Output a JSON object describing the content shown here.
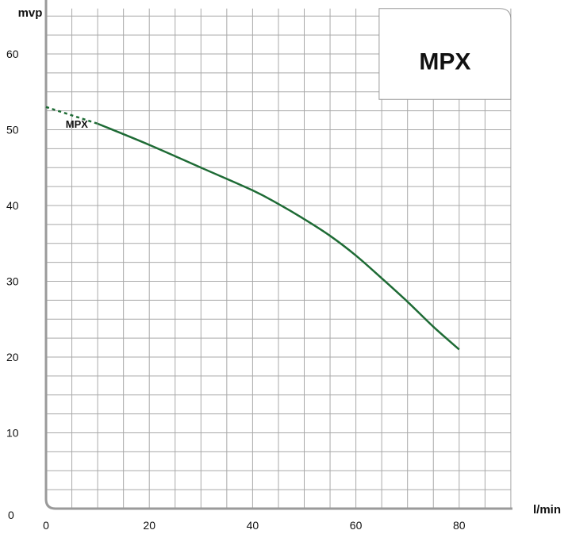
{
  "chart_data": {
    "type": "line",
    "title": "MPX",
    "xlabel": "l/min",
    "ylabel": "mvp",
    "xlim": [
      0,
      90
    ],
    "ylim": [
      0,
      66
    ],
    "x_ticks": [
      0,
      20,
      40,
      60,
      80
    ],
    "y_ticks": [
      0,
      10,
      20,
      30,
      40,
      50,
      60
    ],
    "grid": true,
    "series": [
      {
        "name": "MPX",
        "color": "#1e6b35",
        "x": [
          10,
          20,
          30,
          40,
          45,
          50,
          55,
          60,
          65,
          70,
          75,
          80
        ],
        "y": [
          50.8,
          48.0,
          45.0,
          42.0,
          40.2,
          38.2,
          36.0,
          33.4,
          30.4,
          27.3,
          24.0,
          21.0
        ],
        "extrapolated": {
          "x": [
            0,
            10
          ],
          "y": [
            53.0,
            50.8
          ]
        }
      }
    ]
  }
}
